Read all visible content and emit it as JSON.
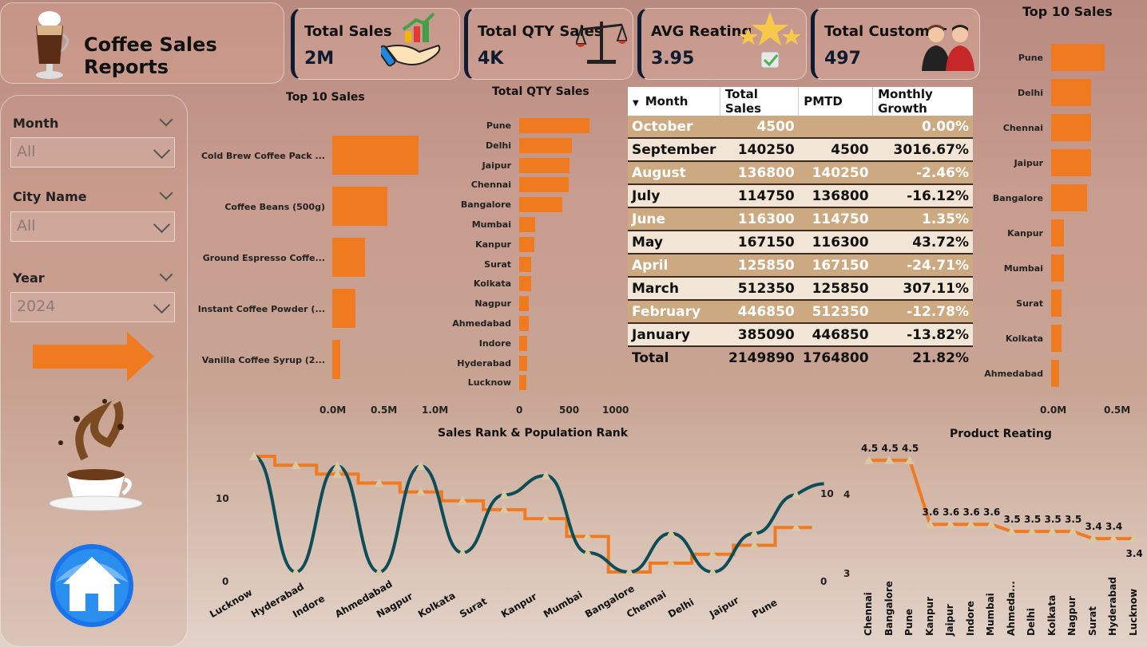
{
  "header": {
    "title": "Coffee Sales Reports"
  },
  "kpis": [
    {
      "label": "Total Sales",
      "value": "2M",
      "icon": "money-growth-icon"
    },
    {
      "label": "Total QTY Sales",
      "value": "4K",
      "icon": "scale-icon"
    },
    {
      "label": "AVG Reating",
      "value": "3.95",
      "icon": "stars-icon"
    },
    {
      "label": "Total Customer",
      "value": "497",
      "icon": "customers-icon"
    }
  ],
  "filters": {
    "month": {
      "label": "Month",
      "value": "All"
    },
    "city": {
      "label": "City Name",
      "value": "All"
    },
    "year": {
      "label": "Year",
      "value": "2024"
    }
  },
  "colors": {
    "accent": "#f07a20",
    "dark_line": "#0d4d57",
    "kpi_border": "#0d1b33"
  },
  "top_products": {
    "title": "Top 10 Sales",
    "categories": [
      "Cold Brew Coffee Pack ...",
      "Coffee Beans (500g)",
      "Ground Espresso Coffe...",
      "Instant Coffee Powder (...",
      "Vanilla Coffee Syrup (2..."
    ],
    "values": [
      0.93,
      0.59,
      0.35,
      0.25,
      0.09
    ],
    "ticks": [
      "0.0M",
      "0.5M",
      "1.0M"
    ],
    "xlim": [
      0,
      1.05
    ]
  },
  "qty_chart": {
    "title": "Total QTY Sales",
    "categories": [
      "Pune",
      "Delhi",
      "Jaipur",
      "Chennai",
      "Bangalore",
      "Mumbai",
      "Kanpur",
      "Surat",
      "Kolkata",
      "Nagpur",
      "Ahmedabad",
      "Indore",
      "Hyderabad",
      "Lucknow"
    ],
    "values": [
      800,
      600,
      570,
      560,
      490,
      180,
      170,
      140,
      140,
      110,
      110,
      90,
      90,
      80
    ],
    "ticks": [
      "0",
      "500",
      "1000"
    ],
    "xlim": [
      0,
      1000
    ]
  },
  "city_sales": {
    "title": "Top 10 Sales",
    "categories": [
      "Pune",
      "Delhi",
      "Chennai",
      "Jaipur",
      "Bangalore",
      "Kanpur",
      "Mumbai",
      "Surat",
      "Kolkata",
      "Ahmedabad"
    ],
    "values": [
      0.42,
      0.31,
      0.31,
      0.31,
      0.28,
      0.1,
      0.1,
      0.08,
      0.08,
      0.06
    ],
    "ticks": [
      "0.0M",
      "0.5M"
    ],
    "xlim": [
      0,
      0.5
    ]
  },
  "table": {
    "headers": [
      "Month",
      "Total Sales",
      "PMTD",
      "Monthly Growth"
    ],
    "rows": [
      [
        "October",
        "4500",
        "",
        "0.00%"
      ],
      [
        "September",
        "140250",
        "4500",
        "3016.67%"
      ],
      [
        "August",
        "136800",
        "140250",
        "-2.46%"
      ],
      [
        "July",
        "114750",
        "136800",
        "-16.12%"
      ],
      [
        "June",
        "116300",
        "114750",
        "1.35%"
      ],
      [
        "May",
        "167150",
        "116300",
        "43.72%"
      ],
      [
        "April",
        "125850",
        "167150",
        "-24.71%"
      ],
      [
        "March",
        "512350",
        "125850",
        "307.11%"
      ],
      [
        "February",
        "446850",
        "512350",
        "-12.78%"
      ],
      [
        "January",
        "385090",
        "446850",
        "-13.82%"
      ]
    ],
    "total": [
      "Total",
      "2149890",
      "1764800",
      "21.82%"
    ]
  },
  "rank_chart": {
    "title": "Sales Rank & Population Rank",
    "categories": [
      "Lucknow",
      "Hyderabad",
      "Indore",
      "Ahmedabad",
      "Nagpur",
      "Kolkata",
      "Surat",
      "Kanpur",
      "Mumbai",
      "Bangalore",
      "Chennai",
      "Delhi",
      "Jaipur",
      "Pune"
    ],
    "sales_rank": [
      14,
      13,
      12,
      11,
      10,
      9,
      8,
      7,
      5,
      1,
      2,
      3,
      4,
      6
    ],
    "population_rank": [
      13,
      1,
      12,
      1,
      12,
      3,
      9,
      11,
      3,
      1,
      5,
      1,
      5,
      9
    ],
    "y_ticks": [
      "0",
      "10"
    ],
    "y2_ticks": [
      "0",
      "10"
    ],
    "y3_ticks": [
      "3",
      "4"
    ]
  },
  "product_rating": {
    "title": "Product Reating",
    "categories": [
      "Chennai",
      "Bangalore",
      "Pune",
      "Kanpur",
      "Jaipur",
      "Indore",
      "Mumbai",
      "Ahmeda...",
      "Delhi",
      "Kolkata",
      "Nagpur",
      "Surat",
      "Hyderabad",
      "Lucknow"
    ],
    "values": [
      4.5,
      4.5,
      4.5,
      3.6,
      3.6,
      3.6,
      3.6,
      3.5,
      3.5,
      3.5,
      3.5,
      3.4,
      3.4,
      3.4
    ],
    "labels": [
      "4.5",
      "4.5",
      "4.5",
      "3.6",
      "3.6",
      "3.6",
      "3.6",
      "3.5",
      "3.5",
      "3.5",
      "3.5",
      "3.4",
      "3.4",
      "3.4"
    ]
  }
}
